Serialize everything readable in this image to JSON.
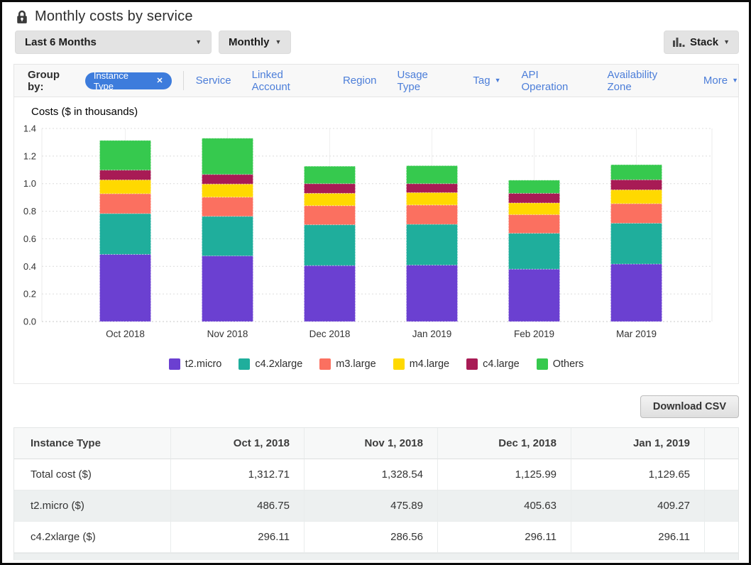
{
  "header": {
    "title": "Monthly costs by service"
  },
  "icons": {
    "caret_down": "▼",
    "close": "✕"
  },
  "controls": {
    "time_range_label": "Last 6 Months",
    "granularity_label": "Monthly",
    "chart_style_label": "Stack"
  },
  "group_by": {
    "label": "Group by:",
    "pill_label": "Instance Type",
    "links": [
      {
        "label": "Service",
        "caret": false
      },
      {
        "label": "Linked Account",
        "caret": false
      },
      {
        "label": "Region",
        "caret": false
      },
      {
        "label": "Usage Type",
        "caret": false
      },
      {
        "label": "Tag",
        "caret": true
      },
      {
        "label": "API Operation",
        "caret": false
      },
      {
        "label": "Availability Zone",
        "caret": false
      },
      {
        "label": "More",
        "caret": true
      }
    ]
  },
  "chart_data": {
    "type": "bar",
    "stacked": true,
    "title": "Costs ($ in thousands)",
    "categories": [
      "Oct 2018",
      "Nov 2018",
      "Dec 2018",
      "Jan 2019",
      "Feb 2019",
      "Mar 2019"
    ],
    "series": [
      {
        "name": "t2.micro",
        "color": "#6B40D1",
        "values": [
          0.487,
          0.476,
          0.406,
          0.409,
          0.38,
          0.417
        ]
      },
      {
        "name": "c4.2xlarge",
        "color": "#1FAE9C",
        "values": [
          0.296,
          0.287,
          0.296,
          0.296,
          0.26,
          0.296
        ]
      },
      {
        "name": "m3.large",
        "color": "#FB7060",
        "values": [
          0.144,
          0.139,
          0.138,
          0.14,
          0.135,
          0.142
        ]
      },
      {
        "name": "m4.large",
        "color": "#FFD900",
        "values": [
          0.1,
          0.095,
          0.09,
          0.09,
          0.085,
          0.1
        ]
      },
      {
        "name": "c4.large",
        "color": "#A81B55",
        "values": [
          0.071,
          0.07,
          0.07,
          0.065,
          0.07,
          0.073
        ]
      },
      {
        "name": "Others",
        "color": "#36C94E",
        "values": [
          0.215,
          0.262,
          0.126,
          0.13,
          0.095,
          0.109
        ]
      }
    ],
    "ylim": [
      0,
      1.4
    ],
    "ytick_step": 0.2,
    "grid": true,
    "legend_position": "bottom"
  },
  "csv_button_label": "Download CSV",
  "table": {
    "columns": [
      "Instance Type",
      "Oct 1, 2018",
      "Nov 1, 2018",
      "Dec 1, 2018",
      "Jan 1, 2019"
    ],
    "rows": [
      {
        "label": "Total cost ($)",
        "values": [
          "1,312.71",
          "1,328.54",
          "1,125.99",
          "1,129.65"
        ],
        "striped": false
      },
      {
        "label": "t2.micro ($)",
        "values": [
          "486.75",
          "475.89",
          "405.63",
          "409.27"
        ],
        "striped": true
      },
      {
        "label": "c4.2xlarge ($)",
        "values": [
          "296.11",
          "286.56",
          "296.11",
          "296.11"
        ],
        "striped": false
      }
    ]
  }
}
